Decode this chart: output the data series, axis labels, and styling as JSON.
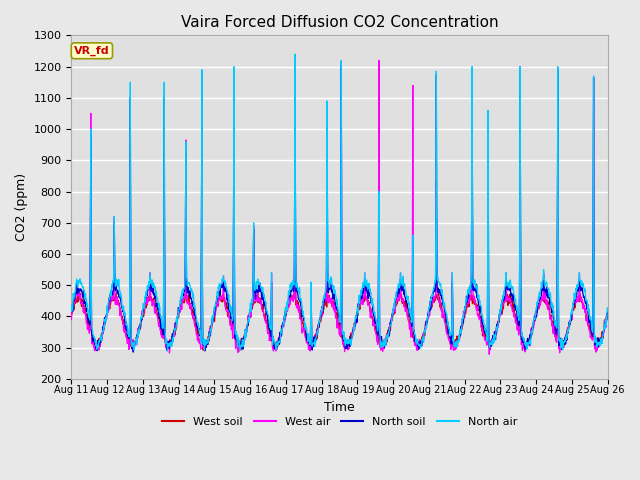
{
  "title": "Vaira Forced Diffusion CO2 Concentration",
  "xlabel": "Time",
  "ylabel": "CO2 (ppm)",
  "ylim": [
    200,
    1300
  ],
  "yticks": [
    200,
    300,
    400,
    500,
    600,
    700,
    800,
    900,
    1000,
    1100,
    1200,
    1300
  ],
  "xtick_labels": [
    "Aug 11",
    "Aug 12",
    "Aug 13",
    "Aug 14",
    "Aug 15",
    "Aug 16",
    "Aug 17",
    "Aug 18",
    "Aug 19",
    "Aug 20",
    "Aug 21",
    "Aug 22",
    "Aug 23",
    "Aug 24",
    "Aug 25",
    "Aug 26"
  ],
  "legend_label": "VR_fd",
  "series_labels": [
    "West soil",
    "West air",
    "North soil",
    "North air"
  ],
  "colors": {
    "west_soil": "#cc0000",
    "west_air": "#ff00ff",
    "north_soil": "#0000cc",
    "north_air": "#00ccff"
  },
  "background_color": "#e8e8e8",
  "plot_bg_color": "#e0e0e0",
  "grid_color": "#ffffff",
  "n_days": 15,
  "n_points_per_day": 96,
  "figsize": [
    6.4,
    4.8
  ],
  "dpi": 100
}
